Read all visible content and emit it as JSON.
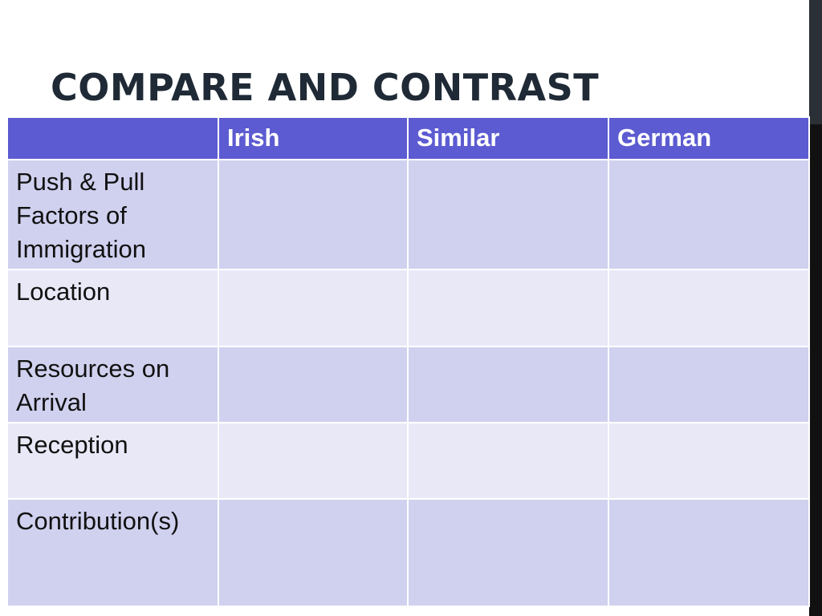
{
  "slide": {
    "title": "COMPARE AND CONTRAST"
  },
  "table": {
    "columns": [
      "",
      "Irish",
      "Similar",
      "German"
    ],
    "rows": [
      {
        "label": "Push & Pull Factors of Immigration",
        "cells": [
          "",
          "",
          ""
        ]
      },
      {
        "label": "Location",
        "cells": [
          "",
          "",
          ""
        ]
      },
      {
        "label": "Resources on Arrival",
        "cells": [
          "",
          "",
          ""
        ]
      },
      {
        "label": "Reception",
        "cells": [
          "",
          "",
          ""
        ]
      },
      {
        "label": "Contribution(s)",
        "cells": [
          "",
          "",
          ""
        ]
      }
    ]
  },
  "colors": {
    "header_bg": "#5c5bd1",
    "row_dark": "#d0d1ef",
    "row_light": "#e8e8f7",
    "title": "#1f2a36"
  }
}
